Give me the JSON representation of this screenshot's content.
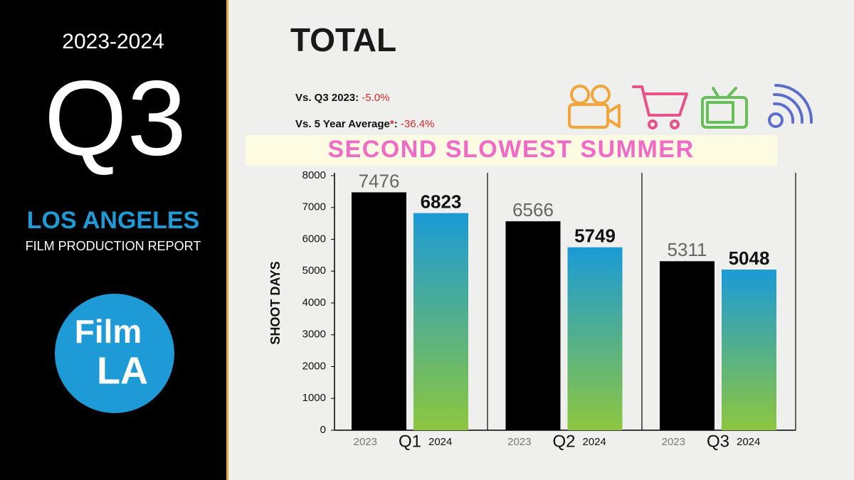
{
  "sidebar": {
    "period": "2023-2024",
    "quarter": "Q3",
    "city": "LOS ANGELES",
    "report": "FILM PRODUCTION REPORT",
    "logo_top": "Film",
    "logo_bottom": "LA"
  },
  "chart_data": {
    "type": "bar",
    "title": "TOTAL",
    "comparisons": [
      {
        "text": "Vs. Q3 2023",
        "separator": ":",
        "value": "-5.0%"
      },
      {
        "text": "Vs. 5 Year Average",
        "note_mark": "*",
        "separator": ":",
        "value": "-36.4%"
      }
    ],
    "subtitle": "SECOND SLOWEST SUMMER",
    "ylabel": "SHOOT DAYS",
    "categories": [
      "Q1",
      "Q2",
      "Q3"
    ],
    "series": [
      {
        "name": "2023",
        "color": "#000000",
        "values": [
          7476,
          6566,
          5311
        ]
      },
      {
        "name": "2024",
        "color": "#1b9ad6",
        "color_bottom": "#8dc63f",
        "values": [
          6823,
          5749,
          5048
        ]
      }
    ],
    "ylim": [
      0,
      8000
    ],
    "yticks": [
      0,
      1000,
      2000,
      3000,
      4000,
      5000,
      6000,
      7000,
      8000
    ]
  }
}
